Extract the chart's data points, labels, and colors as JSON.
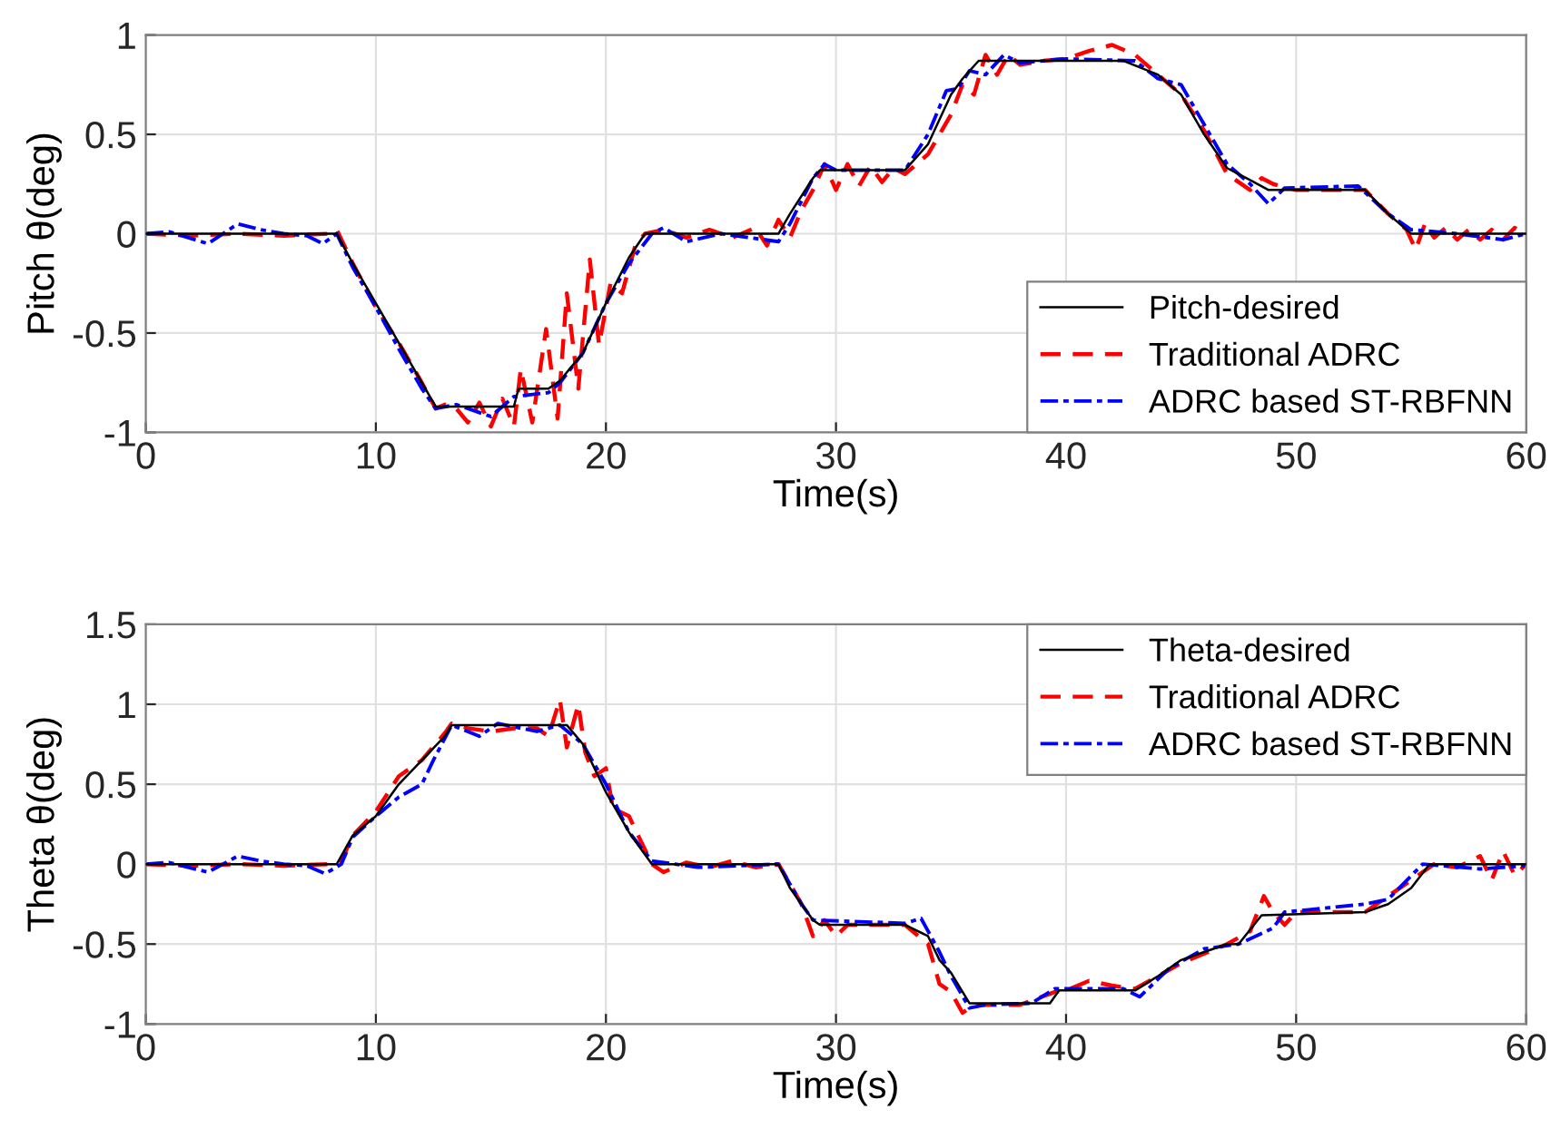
{
  "chart_data": [
    {
      "type": "line",
      "xlabel": "Time(s)",
      "ylabel": "Pitch θ(deg)",
      "xlim": [
        0,
        60
      ],
      "ylim": [
        -1,
        1
      ],
      "xticks": [
        0,
        10,
        20,
        30,
        40,
        50,
        60
      ],
      "yticks": [
        -1,
        -0.5,
        0,
        0.5,
        1
      ],
      "grid": true,
      "legend": "bottom right",
      "series": [
        {
          "name": "Pitch-desired",
          "color": "#000000",
          "line_style": "solid",
          "x": [
            0,
            8.3,
            9,
            10,
            11,
            12,
            12.6,
            16,
            16.2,
            17.5,
            18,
            19,
            20,
            21,
            21.7,
            27.5,
            28,
            29,
            29.3,
            33,
            34,
            35,
            35.5,
            36.2,
            42.5,
            44,
            45,
            46,
            47,
            48,
            48.8,
            53,
            54,
            55,
            60
          ],
          "values": [
            0,
            0,
            -0.15,
            -0.35,
            -0.55,
            -0.75,
            -0.87,
            -0.87,
            -0.78,
            -0.78,
            -0.74,
            -0.6,
            -0.35,
            -0.12,
            0,
            0,
            0.1,
            0.28,
            0.32,
            0.32,
            0.45,
            0.7,
            0.78,
            0.87,
            0.87,
            0.8,
            0.7,
            0.5,
            0.33,
            0.27,
            0.22,
            0.22,
            0.1,
            0,
            0
          ]
        },
        {
          "name": "Traditional ADRC",
          "color": "#ff0000",
          "line_style": "dashed",
          "x": [
            0,
            2,
            4,
            6,
            8,
            8.3,
            9,
            10,
            11,
            12,
            12.6,
            13,
            13.5,
            14,
            14.5,
            15,
            15.5,
            16,
            16.3,
            16.8,
            17.4,
            17.9,
            18.3,
            18.8,
            19.3,
            19.7,
            20.2,
            20.7,
            21.3,
            21.7,
            22.5,
            23.5,
            24.5,
            25.5,
            26.5,
            27,
            27.5,
            28,
            28.5,
            29,
            29.5,
            30,
            30.5,
            31,
            31.5,
            32,
            32.5,
            33,
            34,
            34.5,
            35,
            35.5,
            36,
            36.5,
            37,
            37.5,
            38,
            39,
            40,
            41,
            42,
            43,
            44,
            45,
            46,
            47,
            48,
            48.5,
            49,
            50,
            53,
            54,
            54.8,
            55.2,
            55.6,
            56,
            56.5,
            57,
            57.5,
            58,
            58.5,
            59,
            59.5,
            60
          ],
          "values": [
            0,
            -0.01,
            0,
            -0.01,
            0,
            0.02,
            -0.15,
            -0.37,
            -0.55,
            -0.75,
            -0.88,
            -0.86,
            -0.88,
            -0.95,
            -0.85,
            -0.97,
            -0.83,
            -0.97,
            -0.68,
            -0.95,
            -0.48,
            -0.93,
            -0.3,
            -0.78,
            -0.13,
            -0.56,
            -0.25,
            -0.3,
            -0.05,
            0,
            0.02,
            -0.02,
            0.02,
            -0.02,
            0.03,
            -0.06,
            0.07,
            -0.02,
            0.12,
            0.22,
            0.35,
            0.22,
            0.35,
            0.24,
            0.34,
            0.26,
            0.33,
            0.3,
            0.4,
            0.5,
            0.6,
            0.75,
            0.7,
            0.9,
            0.8,
            0.9,
            0.85,
            0.87,
            0.88,
            0.92,
            0.95,
            0.9,
            0.8,
            0.7,
            0.52,
            0.3,
            0.22,
            0.28,
            0.25,
            0.22,
            0.22,
            0.1,
            0.02,
            -0.08,
            0.05,
            -0.02,
            0.03,
            -0.03,
            0.02,
            -0.03,
            0.02,
            -0.03,
            0.03,
            0
          ]
        },
        {
          "name": "ADRC based ST-RBFNN",
          "color": "#0000ff",
          "line_style": "dashdot",
          "x": [
            0,
            1,
            2.7,
            4,
            5,
            6,
            7,
            7.7,
            8.3,
            9,
            10,
            11,
            12,
            12.6,
            13.5,
            15,
            16,
            17.5,
            18,
            19,
            20,
            21,
            22,
            22.5,
            23.5,
            25,
            27.5,
            28,
            29,
            29.5,
            30,
            33,
            34,
            34.8,
            35.3,
            35.8,
            36.5,
            37.3,
            38,
            40,
            43,
            44,
            45,
            46,
            47,
            48,
            48.8,
            49.5,
            52.7,
            54,
            55,
            57,
            59,
            60
          ],
          "values": [
            0,
            0.01,
            -0.05,
            0.05,
            0.02,
            0,
            -0.01,
            -0.05,
            0,
            -0.17,
            -0.37,
            -0.58,
            -0.78,
            -0.88,
            -0.86,
            -0.92,
            -0.82,
            -0.8,
            -0.75,
            -0.6,
            -0.35,
            -0.15,
            0,
            0.03,
            -0.04,
            0,
            -0.04,
            0.05,
            0.28,
            0.35,
            0.32,
            0.32,
            0.5,
            0.72,
            0.73,
            0.82,
            0.8,
            0.9,
            0.86,
            0.88,
            0.87,
            0.78,
            0.75,
            0.55,
            0.35,
            0.25,
            0.15,
            0.23,
            0.24,
            0.1,
            0.02,
            0,
            -0.03,
            0
          ]
        }
      ]
    },
    {
      "type": "line",
      "xlabel": "Time(s)",
      "ylabel": "Theta θ(deg)",
      "xlim": [
        0,
        60
      ],
      "ylim": [
        -1,
        1.5
      ],
      "xticks": [
        0,
        10,
        20,
        30,
        40,
        50,
        60
      ],
      "yticks": [
        -1,
        -0.5,
        0,
        0.5,
        1,
        1.5
      ],
      "grid": true,
      "legend": "top right",
      "series": [
        {
          "name": "Theta-desired",
          "color": "#000000",
          "line_style": "solid",
          "x": [
            0,
            8.3,
            9,
            10,
            11,
            12,
            13,
            13.3,
            18.3,
            19,
            20,
            21,
            22,
            27.5,
            28,
            29,
            29.3,
            33,
            34,
            34.5,
            35,
            35.8,
            39.3,
            39.7,
            43,
            44,
            45,
            46,
            47,
            47.5,
            48.5,
            53,
            54,
            55,
            55.8,
            60
          ],
          "values": [
            0,
            0,
            0.18,
            0.3,
            0.5,
            0.65,
            0.8,
            0.87,
            0.87,
            0.75,
            0.45,
            0.2,
            0,
            0,
            -0.15,
            -0.35,
            -0.38,
            -0.38,
            -0.45,
            -0.6,
            -0.68,
            -0.87,
            -0.87,
            -0.79,
            -0.79,
            -0.7,
            -0.6,
            -0.55,
            -0.5,
            -0.5,
            -0.32,
            -0.3,
            -0.25,
            -0.15,
            0,
            0
          ]
        },
        {
          "name": "Traditional ADRC",
          "color": "#ff0000",
          "line_style": "dashed",
          "x": [
            0,
            2,
            4,
            6,
            8,
            8.5,
            9,
            10,
            11,
            12,
            13,
            13.3,
            14,
            15,
            16,
            17,
            17.5,
            18,
            18.3,
            18.8,
            19.1,
            19.5,
            20,
            20.3,
            21,
            22,
            22.5,
            23.5,
            24.5,
            25.5,
            26.5,
            27.5,
            28.5,
            29,
            29.5,
            30,
            30.5,
            33,
            34,
            34.5,
            35,
            35.5,
            36,
            38,
            39.5,
            40,
            41,
            42,
            43,
            44,
            45,
            47,
            48,
            48.6,
            49,
            49.5,
            50,
            53,
            55,
            56,
            57,
            58,
            58.5,
            59,
            59.5,
            60
          ],
          "values": [
            0,
            -0.01,
            0,
            -0.01,
            0,
            0.02,
            0.18,
            0.33,
            0.55,
            0.65,
            0.82,
            0.88,
            0.85,
            0.83,
            0.85,
            0.85,
            0.8,
            1.03,
            0.73,
            1.0,
            0.7,
            0.55,
            0.6,
            0.35,
            0.3,
            0,
            -0.05,
            0.01,
            -0.02,
            0.02,
            -0.02,
            0,
            -0.25,
            -0.45,
            -0.35,
            -0.45,
            -0.38,
            -0.38,
            -0.5,
            -0.75,
            -0.8,
            -0.93,
            -0.88,
            -0.88,
            -0.8,
            -0.79,
            -0.73,
            -0.76,
            -0.78,
            -0.7,
            -0.62,
            -0.5,
            -0.42,
            -0.2,
            -0.3,
            -0.38,
            -0.3,
            -0.3,
            -0.1,
            0,
            -0.02,
            0.05,
            -0.1,
            0.08,
            -0.07,
            0
          ]
        },
        {
          "name": "ADRC based ST-RBFNN",
          "color": "#0000ff",
          "line_style": "dashdot",
          "x": [
            0,
            1,
            2.7,
            4,
            5,
            6,
            7,
            7.8,
            8.5,
            9,
            10,
            11,
            12,
            12.5,
            13.3,
            14.5,
            15.3,
            17,
            18,
            19,
            20,
            21,
            22,
            23,
            24,
            27.5,
            28.5,
            29,
            33,
            33.7,
            34.5,
            35,
            35.8,
            36.5,
            38.5,
            39.5,
            42.5,
            43.2,
            44.5,
            46,
            47.5,
            49,
            49.5,
            53,
            54,
            55.5,
            58,
            60
          ],
          "values": [
            0,
            0.01,
            -0.05,
            0.05,
            0.02,
            0,
            -0.01,
            -0.06,
            0,
            0.17,
            0.3,
            0.42,
            0.5,
            0.65,
            0.87,
            0.8,
            0.88,
            0.83,
            0.87,
            0.75,
            0.5,
            0.2,
            0.02,
            0,
            -0.02,
            0,
            -0.25,
            -0.35,
            -0.37,
            -0.34,
            -0.55,
            -0.7,
            -0.9,
            -0.88,
            -0.87,
            -0.78,
            -0.78,
            -0.83,
            -0.65,
            -0.53,
            -0.5,
            -0.4,
            -0.3,
            -0.25,
            -0.22,
            0,
            -0.03,
            -0.01
          ]
        }
      ]
    }
  ]
}
